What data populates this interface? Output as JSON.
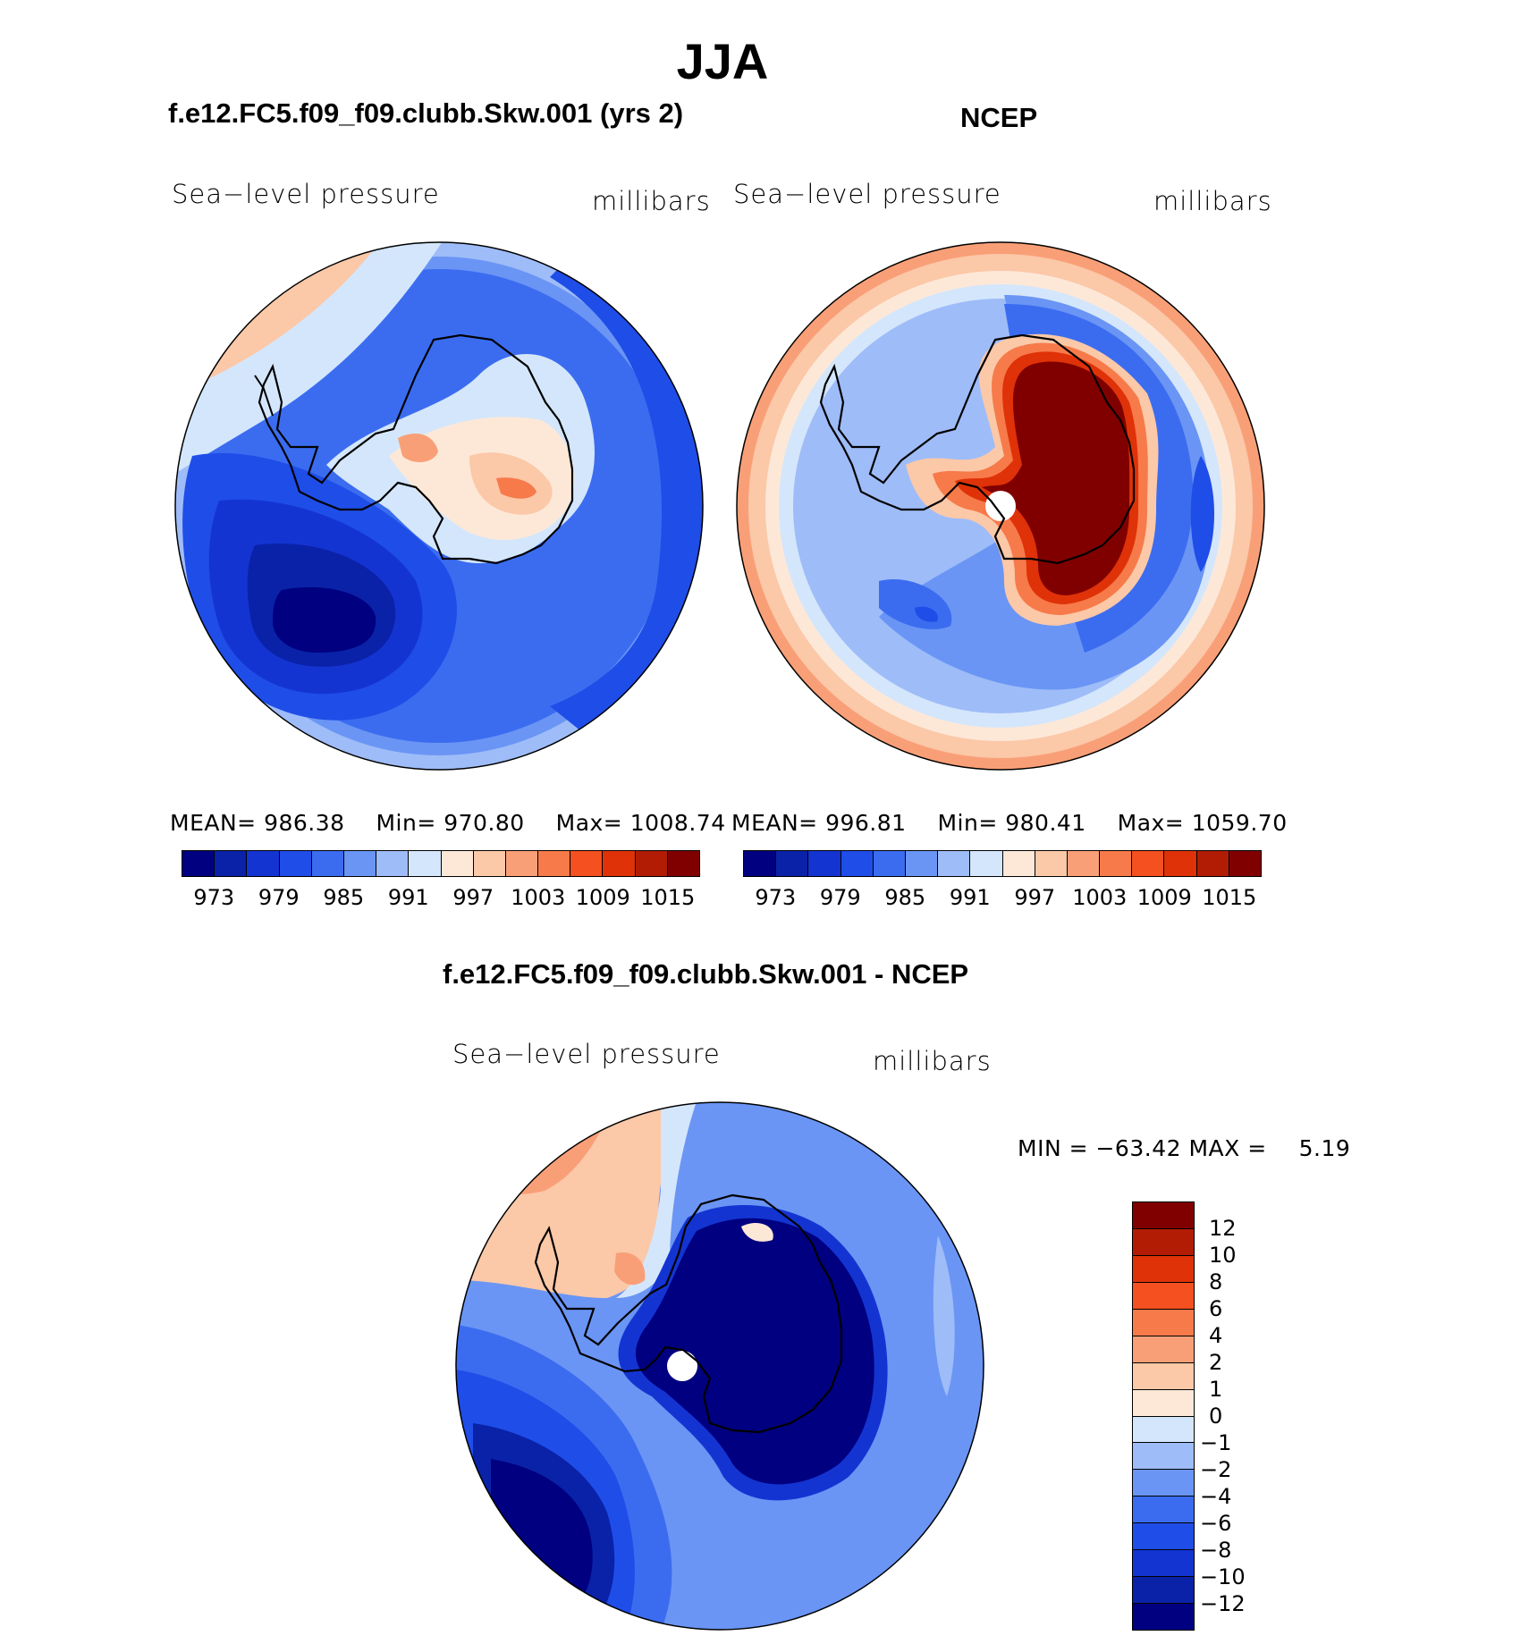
{
  "title": "JJA",
  "panels": {
    "model": {
      "case_title": "f.e12.FC5.f09_f09.clubb.Skw.001 (yrs 2)",
      "variable": "Sea−level pressure",
      "units": "millibars",
      "mean_label": "MEAN=",
      "mean": "986.38",
      "min_label": "Min=",
      "min": "970.80",
      "max_label": "Max=",
      "max": "1008.74"
    },
    "obs": {
      "case_title": "NCEP",
      "variable": "Sea−level pressure",
      "units": "millibars",
      "mean_label": "MEAN=",
      "mean": "996.81",
      "min_label": "Min=",
      "min": "980.41",
      "max_label": "Max=",
      "max": "1059.70"
    },
    "diff": {
      "case_title": "f.e12.FC5.f09_f09.clubb.Skw.001 - NCEP",
      "variable": "Sea−level pressure",
      "units": "millibars",
      "minmax_text": "MIN = −63.42 MAX =",
      "max_value": "5.19"
    }
  },
  "abs_colorbar": {
    "colors": [
      "#000080",
      "#0a22a8",
      "#1434d2",
      "#1f4de8",
      "#3b6cf0",
      "#6a95f4",
      "#9ebcf8",
      "#d4e6fb",
      "#fde8d8",
      "#fbc8a8",
      "#f99f77",
      "#f77a4a",
      "#f5501f",
      "#df3208",
      "#b21c04",
      "#800000"
    ],
    "tick_labels": [
      "973",
      "979",
      "985",
      "991",
      "997",
      "1003",
      "1009",
      "1015"
    ]
  },
  "diff_colorbar": {
    "colors_top_to_bottom": [
      "#800000",
      "#b21c04",
      "#df3208",
      "#f5501f",
      "#f77a4a",
      "#f99f77",
      "#fbc8a8",
      "#fde8d8",
      "#d4e6fb",
      "#9ebcf8",
      "#6a95f4",
      "#3b6cf0",
      "#1f4de8",
      "#1434d2",
      "#0a22a8",
      "#000080"
    ],
    "tick_labels": [
      "12",
      "10",
      "8",
      "6",
      "4",
      "2",
      "1",
      "0",
      "−1",
      "−2",
      "−4",
      "−6",
      "−8",
      "−10",
      "−12"
    ]
  }
}
